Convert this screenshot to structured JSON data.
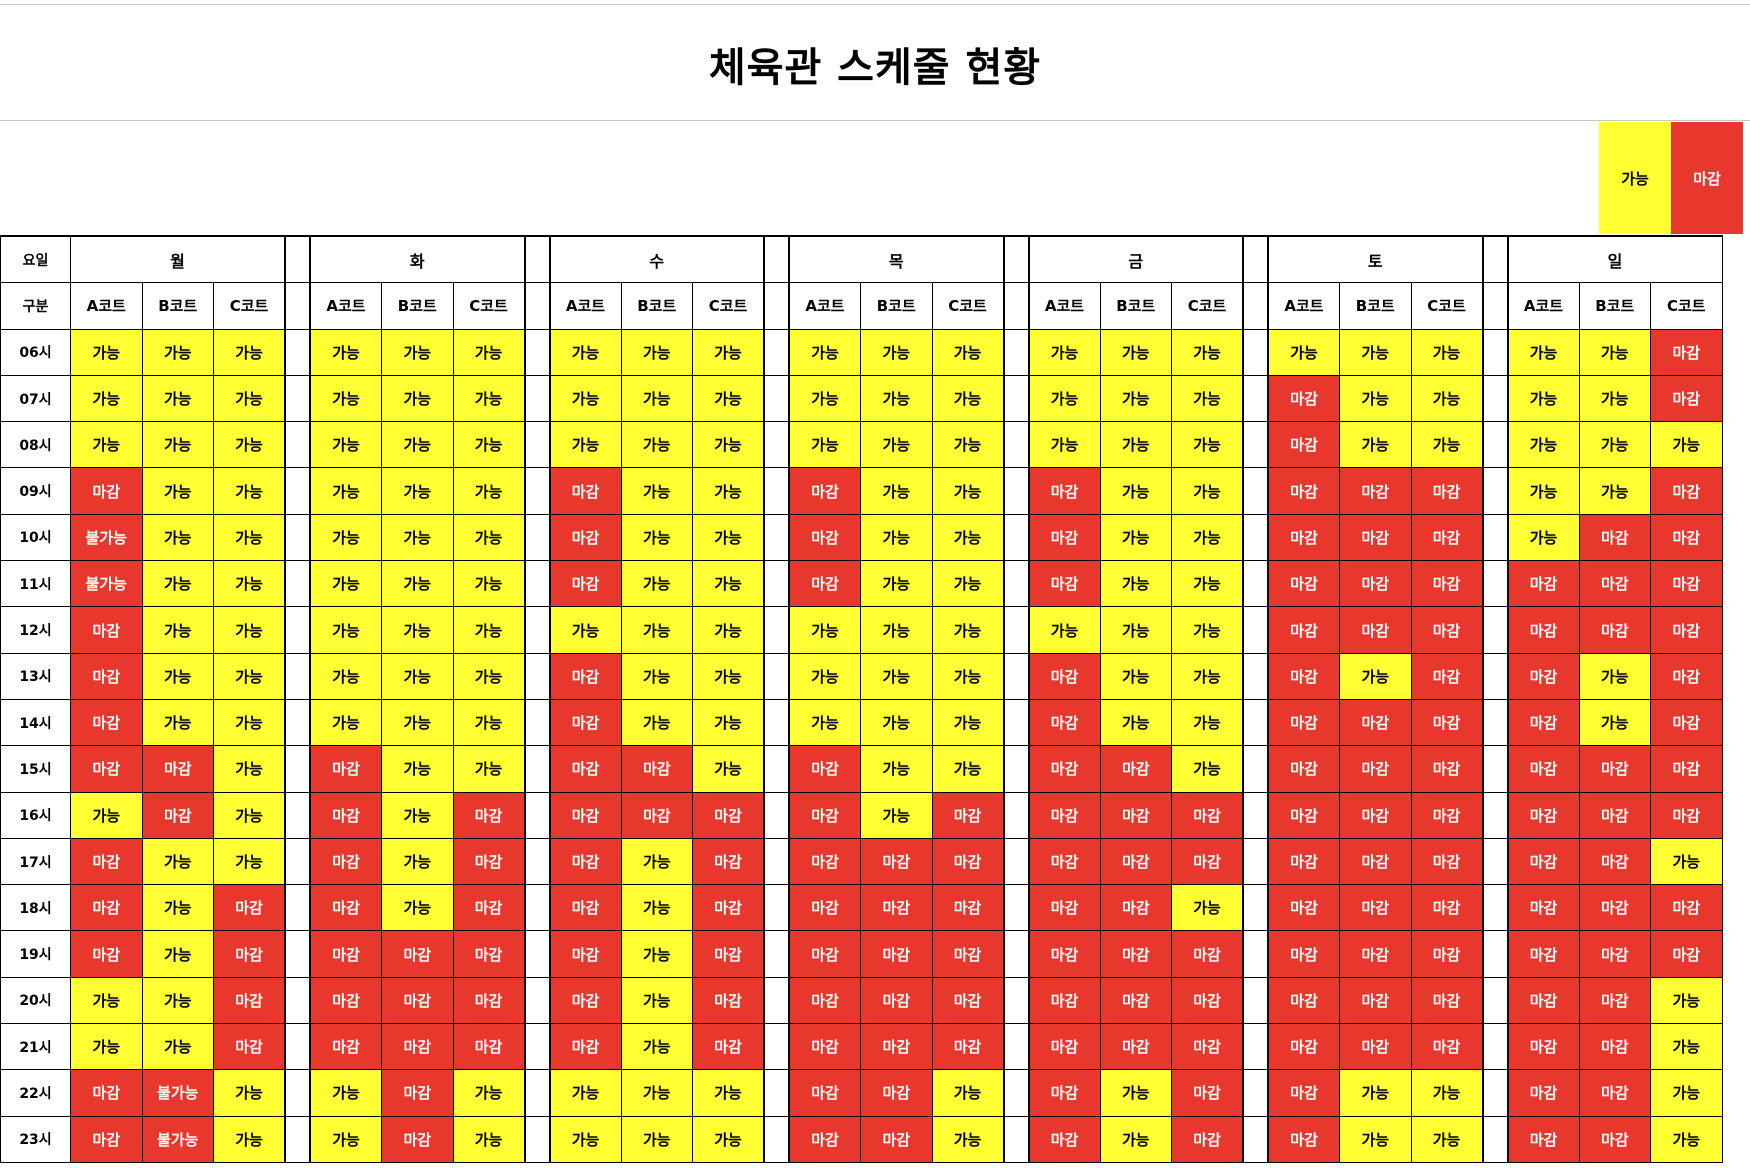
{
  "title": "체육관 스케줄 현황",
  "legend": [
    {
      "label": "가능",
      "color": "#ffff33"
    },
    {
      "label": "마감",
      "color": "#e8382e"
    }
  ],
  "header": {
    "day_label": "요일",
    "court_label": "구분",
    "courts": [
      "A코트",
      "B코트",
      "C코트"
    ]
  },
  "colors": {
    "available": "#ffff33",
    "closed": "#e8382e"
  },
  "schedule": {
    "available_values": [
      "가능"
    ],
    "days": [
      {
        "name": "월",
        "rows": [
          [
            "가능",
            "가능",
            "가능"
          ],
          [
            "가능",
            "가능",
            "가능"
          ],
          [
            "가능",
            "가능",
            "가능"
          ],
          [
            "마감",
            "가능",
            "가능"
          ],
          [
            "불가능",
            "가능",
            "가능"
          ],
          [
            "불가능",
            "가능",
            "가능"
          ],
          [
            "마감",
            "가능",
            "가능"
          ],
          [
            "마감",
            "가능",
            "가능"
          ],
          [
            "마감",
            "가능",
            "가능"
          ],
          [
            "마감",
            "마감",
            "가능"
          ],
          [
            "가능",
            "마감",
            "가능"
          ],
          [
            "마감",
            "가능",
            "가능"
          ],
          [
            "마감",
            "가능",
            "마감"
          ],
          [
            "마감",
            "가능",
            "마감"
          ],
          [
            "가능",
            "가능",
            "마감"
          ],
          [
            "가능",
            "가능",
            "마감"
          ],
          [
            "마감",
            "불가능",
            "가능"
          ],
          [
            "마감",
            "불가능",
            "가능"
          ]
        ]
      },
      {
        "name": "화",
        "rows": [
          [
            "가능",
            "가능",
            "가능"
          ],
          [
            "가능",
            "가능",
            "가능"
          ],
          [
            "가능",
            "가능",
            "가능"
          ],
          [
            "가능",
            "가능",
            "가능"
          ],
          [
            "가능",
            "가능",
            "가능"
          ],
          [
            "가능",
            "가능",
            "가능"
          ],
          [
            "가능",
            "가능",
            "가능"
          ],
          [
            "가능",
            "가능",
            "가능"
          ],
          [
            "가능",
            "가능",
            "가능"
          ],
          [
            "마감",
            "가능",
            "가능"
          ],
          [
            "마감",
            "가능",
            "마감"
          ],
          [
            "마감",
            "가능",
            "마감"
          ],
          [
            "마감",
            "가능",
            "마감"
          ],
          [
            "마감",
            "마감",
            "마감"
          ],
          [
            "마감",
            "마감",
            "마감"
          ],
          [
            "마감",
            "마감",
            "마감"
          ],
          [
            "가능",
            "마감",
            "가능"
          ],
          [
            "가능",
            "마감",
            "가능"
          ]
        ]
      },
      {
        "name": "수",
        "rows": [
          [
            "가능",
            "가능",
            "가능"
          ],
          [
            "가능",
            "가능",
            "가능"
          ],
          [
            "가능",
            "가능",
            "가능"
          ],
          [
            "마감",
            "가능",
            "가능"
          ],
          [
            "마감",
            "가능",
            "가능"
          ],
          [
            "마감",
            "가능",
            "가능"
          ],
          [
            "가능",
            "가능",
            "가능"
          ],
          [
            "마감",
            "가능",
            "가능"
          ],
          [
            "마감",
            "가능",
            "가능"
          ],
          [
            "마감",
            "마감",
            "가능"
          ],
          [
            "마감",
            "마감",
            "마감"
          ],
          [
            "마감",
            "가능",
            "마감"
          ],
          [
            "마감",
            "가능",
            "마감"
          ],
          [
            "마감",
            "가능",
            "마감"
          ],
          [
            "마감",
            "가능",
            "마감"
          ],
          [
            "마감",
            "가능",
            "마감"
          ],
          [
            "가능",
            "가능",
            "가능"
          ],
          [
            "가능",
            "가능",
            "가능"
          ]
        ]
      },
      {
        "name": "목",
        "rows": [
          [
            "가능",
            "가능",
            "가능"
          ],
          [
            "가능",
            "가능",
            "가능"
          ],
          [
            "가능",
            "가능",
            "가능"
          ],
          [
            "마감",
            "가능",
            "가능"
          ],
          [
            "마감",
            "가능",
            "가능"
          ],
          [
            "마감",
            "가능",
            "가능"
          ],
          [
            "가능",
            "가능",
            "가능"
          ],
          [
            "가능",
            "가능",
            "가능"
          ],
          [
            "가능",
            "가능",
            "가능"
          ],
          [
            "마감",
            "가능",
            "가능"
          ],
          [
            "마감",
            "가능",
            "마감"
          ],
          [
            "마감",
            "마감",
            "마감"
          ],
          [
            "마감",
            "마감",
            "마감"
          ],
          [
            "마감",
            "마감",
            "마감"
          ],
          [
            "마감",
            "마감",
            "마감"
          ],
          [
            "마감",
            "마감",
            "마감"
          ],
          [
            "마감",
            "마감",
            "가능"
          ],
          [
            "마감",
            "마감",
            "가능"
          ]
        ]
      },
      {
        "name": "금",
        "rows": [
          [
            "가능",
            "가능",
            "가능"
          ],
          [
            "가능",
            "가능",
            "가능"
          ],
          [
            "가능",
            "가능",
            "가능"
          ],
          [
            "마감",
            "가능",
            "가능"
          ],
          [
            "마감",
            "가능",
            "가능"
          ],
          [
            "마감",
            "가능",
            "가능"
          ],
          [
            "가능",
            "가능",
            "가능"
          ],
          [
            "마감",
            "가능",
            "가능"
          ],
          [
            "마감",
            "가능",
            "가능"
          ],
          [
            "마감",
            "마감",
            "가능"
          ],
          [
            "마감",
            "마감",
            "마감"
          ],
          [
            "마감",
            "마감",
            "마감"
          ],
          [
            "마감",
            "마감",
            "가능"
          ],
          [
            "마감",
            "마감",
            "마감"
          ],
          [
            "마감",
            "마감",
            "마감"
          ],
          [
            "마감",
            "마감",
            "마감"
          ],
          [
            "마감",
            "가능",
            "마감"
          ],
          [
            "마감",
            "가능",
            "마감"
          ]
        ]
      },
      {
        "name": "토",
        "rows": [
          [
            "가능",
            "가능",
            "가능"
          ],
          [
            "마감",
            "가능",
            "가능"
          ],
          [
            "마감",
            "가능",
            "가능"
          ],
          [
            "마감",
            "마감",
            "마감"
          ],
          [
            "마감",
            "마감",
            "마감"
          ],
          [
            "마감",
            "마감",
            "마감"
          ],
          [
            "마감",
            "마감",
            "마감"
          ],
          [
            "마감",
            "가능",
            "마감"
          ],
          [
            "마감",
            "마감",
            "마감"
          ],
          [
            "마감",
            "마감",
            "마감"
          ],
          [
            "마감",
            "마감",
            "마감"
          ],
          [
            "마감",
            "마감",
            "마감"
          ],
          [
            "마감",
            "마감",
            "마감"
          ],
          [
            "마감",
            "마감",
            "마감"
          ],
          [
            "마감",
            "마감",
            "마감"
          ],
          [
            "마감",
            "마감",
            "마감"
          ],
          [
            "마감",
            "가능",
            "가능"
          ],
          [
            "마감",
            "가능",
            "가능"
          ]
        ]
      },
      {
        "name": "일",
        "rows": [
          [
            "가능",
            "가능",
            "마감"
          ],
          [
            "가능",
            "가능",
            "마감"
          ],
          [
            "가능",
            "가능",
            "가능"
          ],
          [
            "가능",
            "가능",
            "마감"
          ],
          [
            "가능",
            "마감",
            "마감"
          ],
          [
            "마감",
            "마감",
            "마감"
          ],
          [
            "마감",
            "마감",
            "마감"
          ],
          [
            "마감",
            "가능",
            "마감"
          ],
          [
            "마감",
            "가능",
            "마감"
          ],
          [
            "마감",
            "마감",
            "마감"
          ],
          [
            "마감",
            "마감",
            "마감"
          ],
          [
            "마감",
            "마감",
            "가능"
          ],
          [
            "마감",
            "마감",
            "마감"
          ],
          [
            "마감",
            "마감",
            "마감"
          ],
          [
            "마감",
            "마감",
            "가능"
          ],
          [
            "마감",
            "마감",
            "가능"
          ],
          [
            "마감",
            "마감",
            "가능"
          ],
          [
            "마감",
            "마감",
            "가능"
          ]
        ]
      }
    ],
    "hours": [
      "06시",
      "07시",
      "08시",
      "09시",
      "10시",
      "11시",
      "12시",
      "13시",
      "14시",
      "15시",
      "16시",
      "17시",
      "18시",
      "19시",
      "20시",
      "21시",
      "22시",
      "23시"
    ]
  }
}
